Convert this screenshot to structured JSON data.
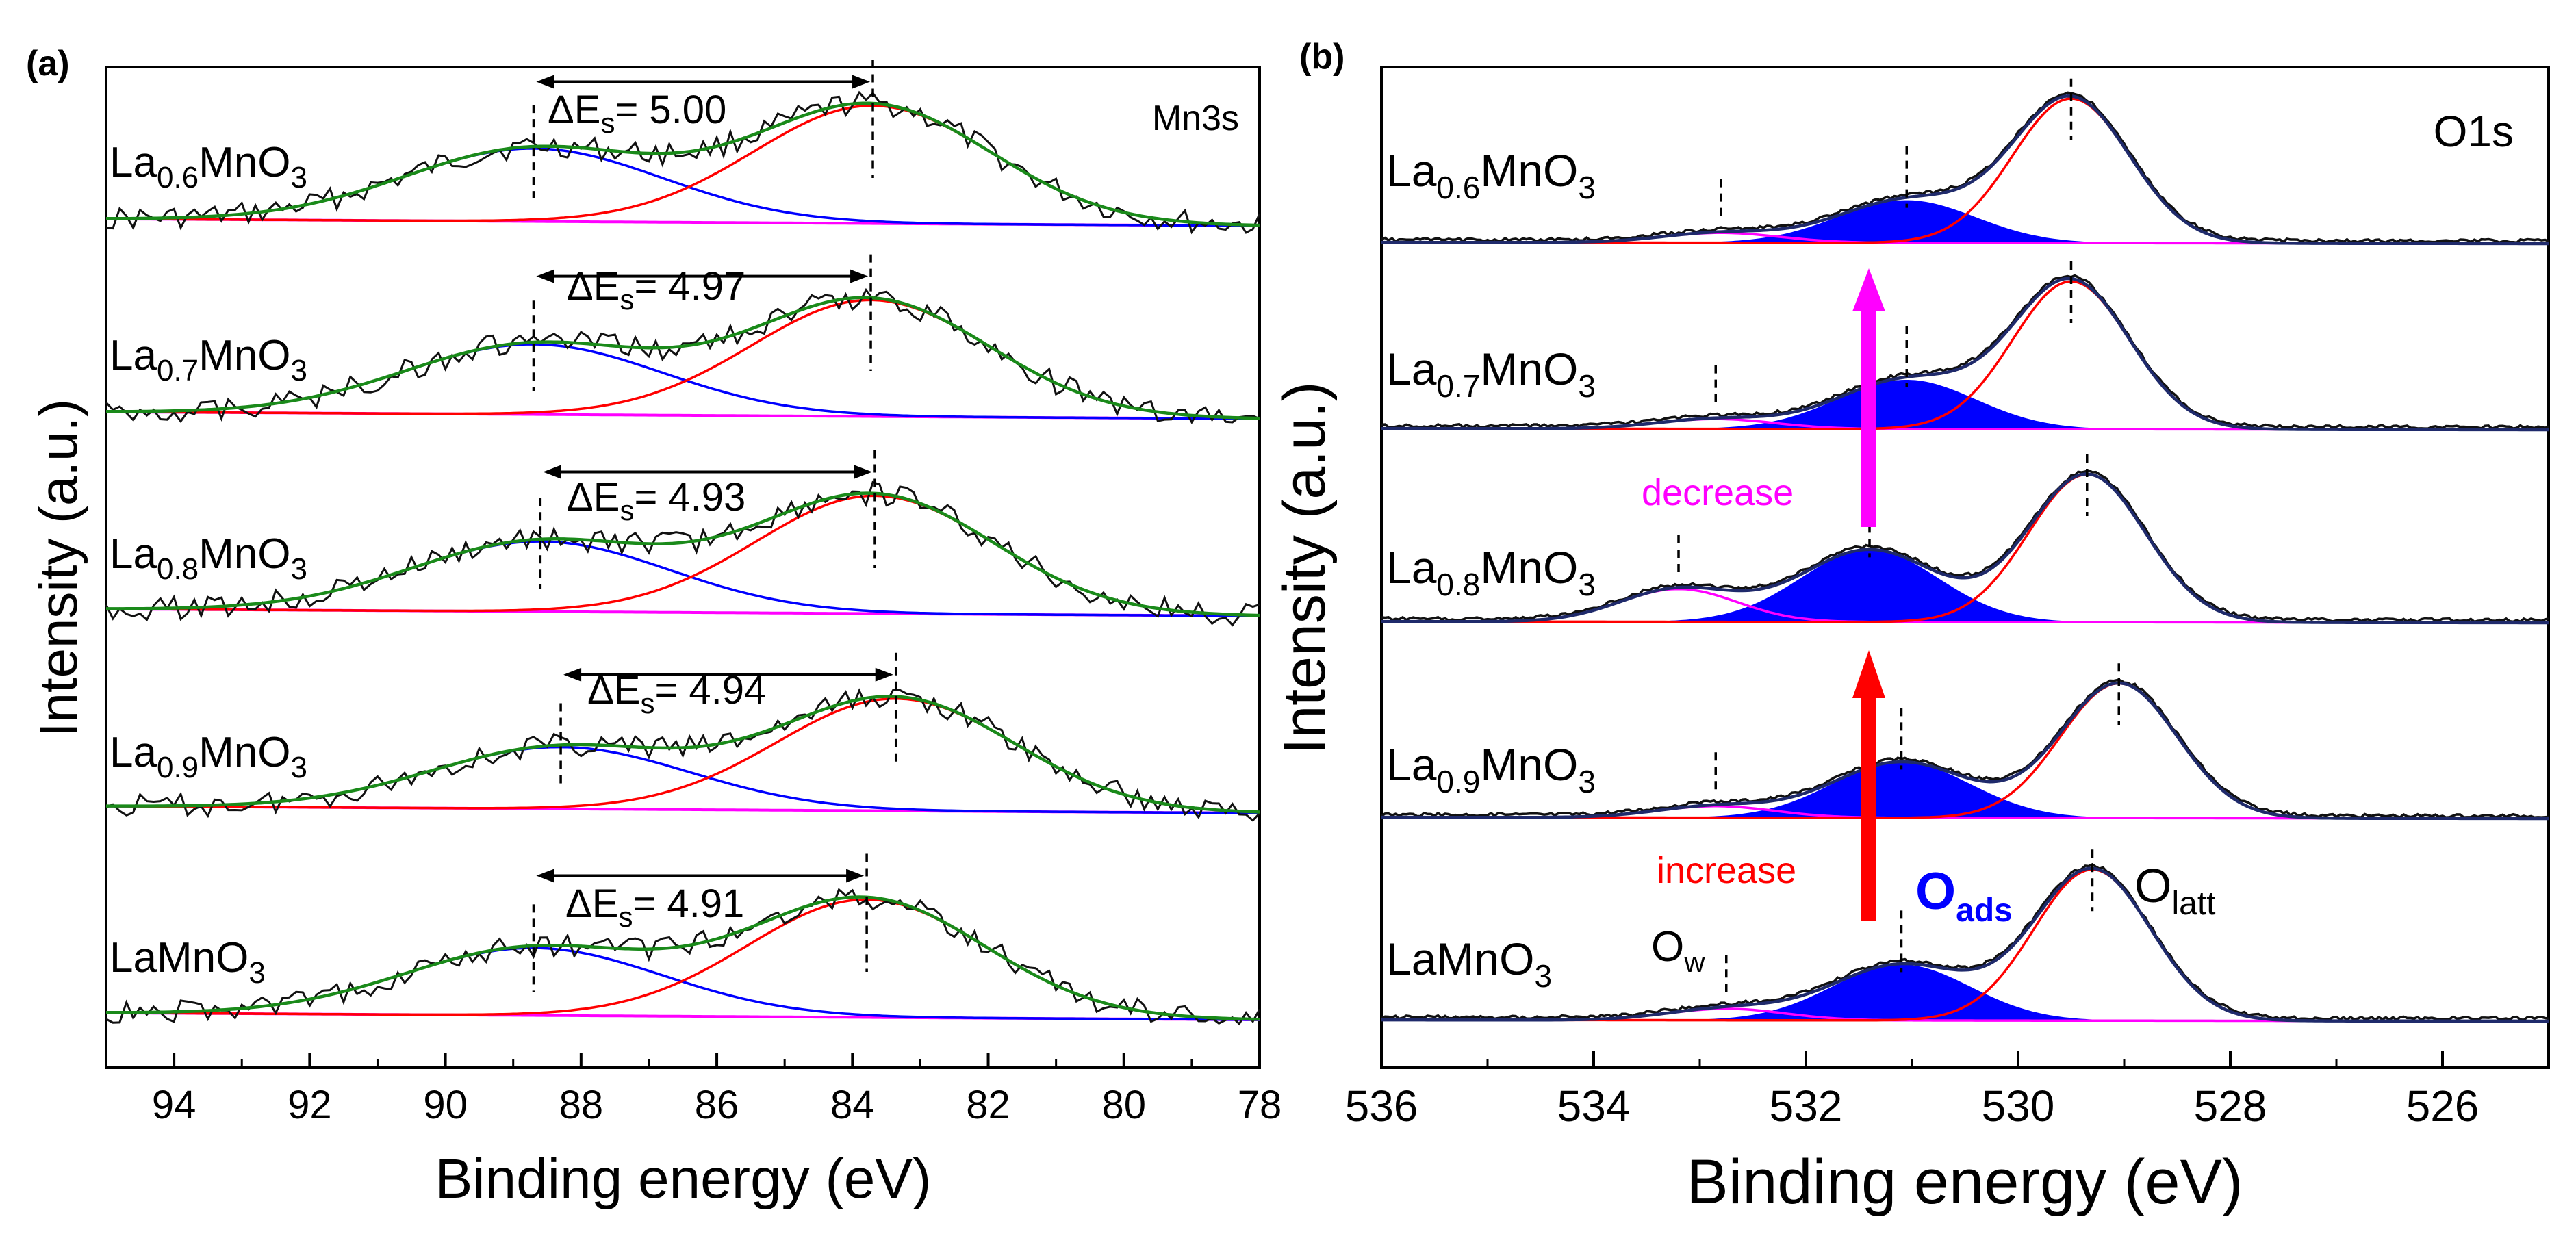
{
  "panels": [
    {
      "label": "(a)",
      "core_level": "Mn3s",
      "xlabel": "Binding energy (eV)",
      "ylabel": "Intensity (a.u.)",
      "chart": {
        "type": "line",
        "xlim": [
          95,
          78
        ],
        "x_reversed": true,
        "ticks": [
          94,
          92,
          90,
          88,
          86,
          84,
          82,
          80,
          78
        ],
        "tick_labels": [
          "94",
          "92",
          "90",
          "88",
          "86",
          "84",
          "82",
          "80",
          "78"
        ],
        "components": [
          "raw data (black)",
          "high-BE peak (blue)",
          "low-BE peak (red)",
          "background (magenta)",
          "fit envelope (green)"
        ],
        "series": [
          {
            "sample": "La0.6MnO3",
            "delta_label": "= 5.00",
            "delta_Es": 5.0,
            "peak_high_eV": 88.7,
            "peak_low_eV": 83.7,
            "amp_high": 0.52,
            "amp_low": 0.84
          },
          {
            "sample": "La0.7MnO3",
            "delta_label": "= 4.97",
            "delta_Es": 4.97,
            "peak_high_eV": 88.7,
            "peak_low_eV": 83.73,
            "amp_high": 0.5,
            "amp_low": 0.83
          },
          {
            "sample": "La0.8MnO3",
            "delta_label": "= 4.93",
            "delta_Es": 4.93,
            "peak_high_eV": 88.6,
            "peak_low_eV": 83.67,
            "amp_high": 0.5,
            "amp_low": 0.84
          },
          {
            "sample": "La0.9MnO3",
            "delta_label": "= 4.94",
            "delta_Es": 4.94,
            "peak_high_eV": 88.3,
            "peak_low_eV": 83.36,
            "amp_high": 0.44,
            "amp_low": 0.8
          },
          {
            "sample": "LaMnO3",
            "delta_label": "= 4.91",
            "delta_Es": 4.91,
            "peak_high_eV": 88.7,
            "peak_low_eV": 83.79,
            "amp_high": 0.48,
            "amp_low": 0.84
          }
        ]
      }
    },
    {
      "label": "(b)",
      "core_level": "O1s",
      "xlabel": "Binding energy (eV)",
      "ylabel": "Intensity (a.u.)",
      "annotations": {
        "increase": "increase",
        "decrease": "decrease",
        "O_ads": "O",
        "O_ads_sub": "ads",
        "O_latt": "O",
        "O_latt_sub": "latt",
        "O_w": "O",
        "O_w_sub": "w"
      },
      "colors": {
        "O_ads_fill": "#0000ff",
        "increase_arrow": "#ff0000",
        "decrease_arrow": "#ff00ff"
      },
      "chart": {
        "type": "line",
        "xlim": [
          536,
          525
        ],
        "x_reversed": true,
        "ticks": [
          536,
          534,
          532,
          530,
          528,
          526
        ],
        "tick_labels": [
          "536",
          "534",
          "532",
          "530",
          "528",
          "526"
        ],
        "components": [
          "raw data (black)",
          "O_latt peak (red)",
          "O_ads peak (blue, filled)",
          "O_w peak (magenta)",
          "fit envelope (navy)"
        ],
        "series": [
          {
            "sample": "La0.6MnO3",
            "O_latt_eV": 529.5,
            "O_ads_eV": 531.05,
            "O_w_eV": 532.8,
            "amp_latt": 0.88,
            "amp_ads": 0.26,
            "amp_w": 0.06
          },
          {
            "sample": "La0.7MnO3",
            "O_latt_eV": 529.5,
            "O_ads_eV": 531.05,
            "O_w_eV": 532.85,
            "amp_latt": 0.9,
            "amp_ads": 0.3,
            "amp_w": 0.06
          },
          {
            "sample": "La0.8MnO3",
            "O_latt_eV": 529.35,
            "O_ads_eV": 531.4,
            "O_w_eV": 533.2,
            "amp_latt": 0.9,
            "amp_ads": 0.44,
            "amp_w": 0.2
          },
          {
            "sample": "La0.9MnO3",
            "O_latt_eV": 529.05,
            "O_ads_eV": 531.1,
            "O_w_eV": 532.85,
            "amp_latt": 0.82,
            "amp_ads": 0.34,
            "amp_w": 0.07
          },
          {
            "sample": "LaMnO3",
            "O_latt_eV": 529.3,
            "O_ads_eV": 531.1,
            "O_w_eV": 532.75,
            "amp_latt": 0.92,
            "amp_ads": 0.34,
            "amp_w": 0.07
          }
        ]
      }
    }
  ],
  "sample_labels": [
    {
      "pre": "La",
      "sub": "0.6",
      "post": "MnO",
      "sub2": "3"
    },
    {
      "pre": "La",
      "sub": "0.7",
      "post": "MnO",
      "sub2": "3"
    },
    {
      "pre": "La",
      "sub": "0.8",
      "post": "MnO",
      "sub2": "3"
    },
    {
      "pre": "La",
      "sub": "0.9",
      "post": "MnO",
      "sub2": "3"
    },
    {
      "pre": "LaMnO",
      "sub": "",
      "post": "",
      "sub2": "3"
    }
  ],
  "delta_prefix": "ΔE",
  "delta_sub": "s",
  "colors": {
    "raw": "#111111",
    "peak_low": "#ff0000",
    "peak_high": "#0000ff",
    "background": "#ff00ff",
    "envelope_a": "#1a8a1a",
    "envelope_b": "#1f2a6b"
  }
}
